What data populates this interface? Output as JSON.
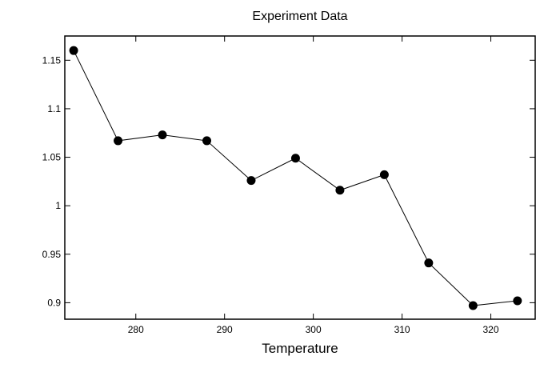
{
  "chart_data": {
    "type": "line",
    "title": "Experiment Data",
    "xlabel": "Temperature",
    "ylabel": "",
    "xlim": [
      272,
      325
    ],
    "ylim": [
      0.883,
      1.175
    ],
    "xticks": [
      280,
      290,
      300,
      310,
      320
    ],
    "xtick_labels": [
      "280",
      "290",
      "300",
      "310",
      "320"
    ],
    "yticks": [
      0.9,
      0.95,
      1,
      1.05,
      1.1,
      1.15
    ],
    "ytick_labels": [
      "0.9",
      "0.95",
      "1",
      "1.05",
      "1.1",
      "1.15"
    ],
    "grid": false,
    "legend": "none",
    "series": [
      {
        "x": [
          273,
          278,
          283,
          288,
          293,
          298,
          303,
          308,
          313,
          318,
          323
        ],
        "y": [
          1.16,
          1.067,
          1.073,
          1.067,
          1.026,
          1.049,
          1.016,
          1.032,
          0.941,
          0.897,
          0.902
        ],
        "color": "#000000",
        "marker": "circle"
      }
    ]
  }
}
